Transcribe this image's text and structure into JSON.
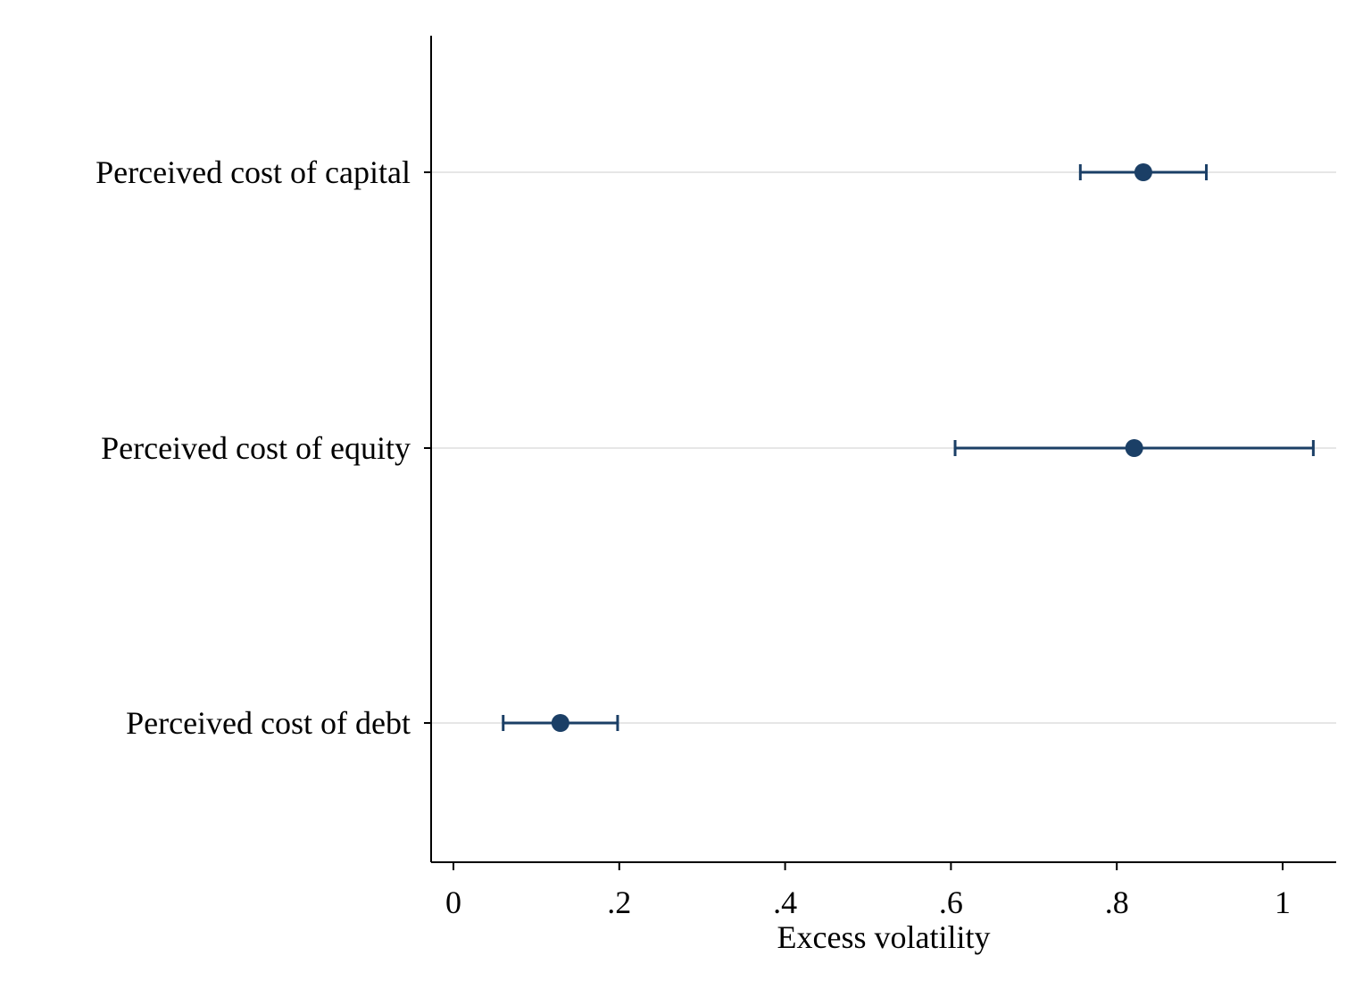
{
  "chart_data": {
    "type": "scatter",
    "orientation": "horizontal",
    "xlabel": "Excess volatility",
    "ylabel": "",
    "xlim": [
      -0.025,
      1.065
    ],
    "x_ticks": [
      {
        "value": 0,
        "label": "0"
      },
      {
        "value": 0.2,
        "label": ".2"
      },
      {
        "value": 0.4,
        "label": ".4"
      },
      {
        "value": 0.6,
        "label": ".6"
      },
      {
        "value": 0.8,
        "label": ".8"
      },
      {
        "value": 1,
        "label": "1"
      }
    ],
    "categories": [
      "Perceived cost of capital",
      "Perceived cost of equity",
      "Perceived cost of debt"
    ],
    "series": [
      {
        "estimates": [
          0.832,
          0.821,
          0.129
        ],
        "ci_low": [
          0.756,
          0.605,
          0.06
        ],
        "ci_high": [
          0.908,
          1.037,
          0.198
        ]
      }
    ],
    "grid": "horizontal",
    "colors": {
      "marker": "#1b3f66",
      "grid": "#e6e6e6",
      "axis": "#000000"
    }
  }
}
